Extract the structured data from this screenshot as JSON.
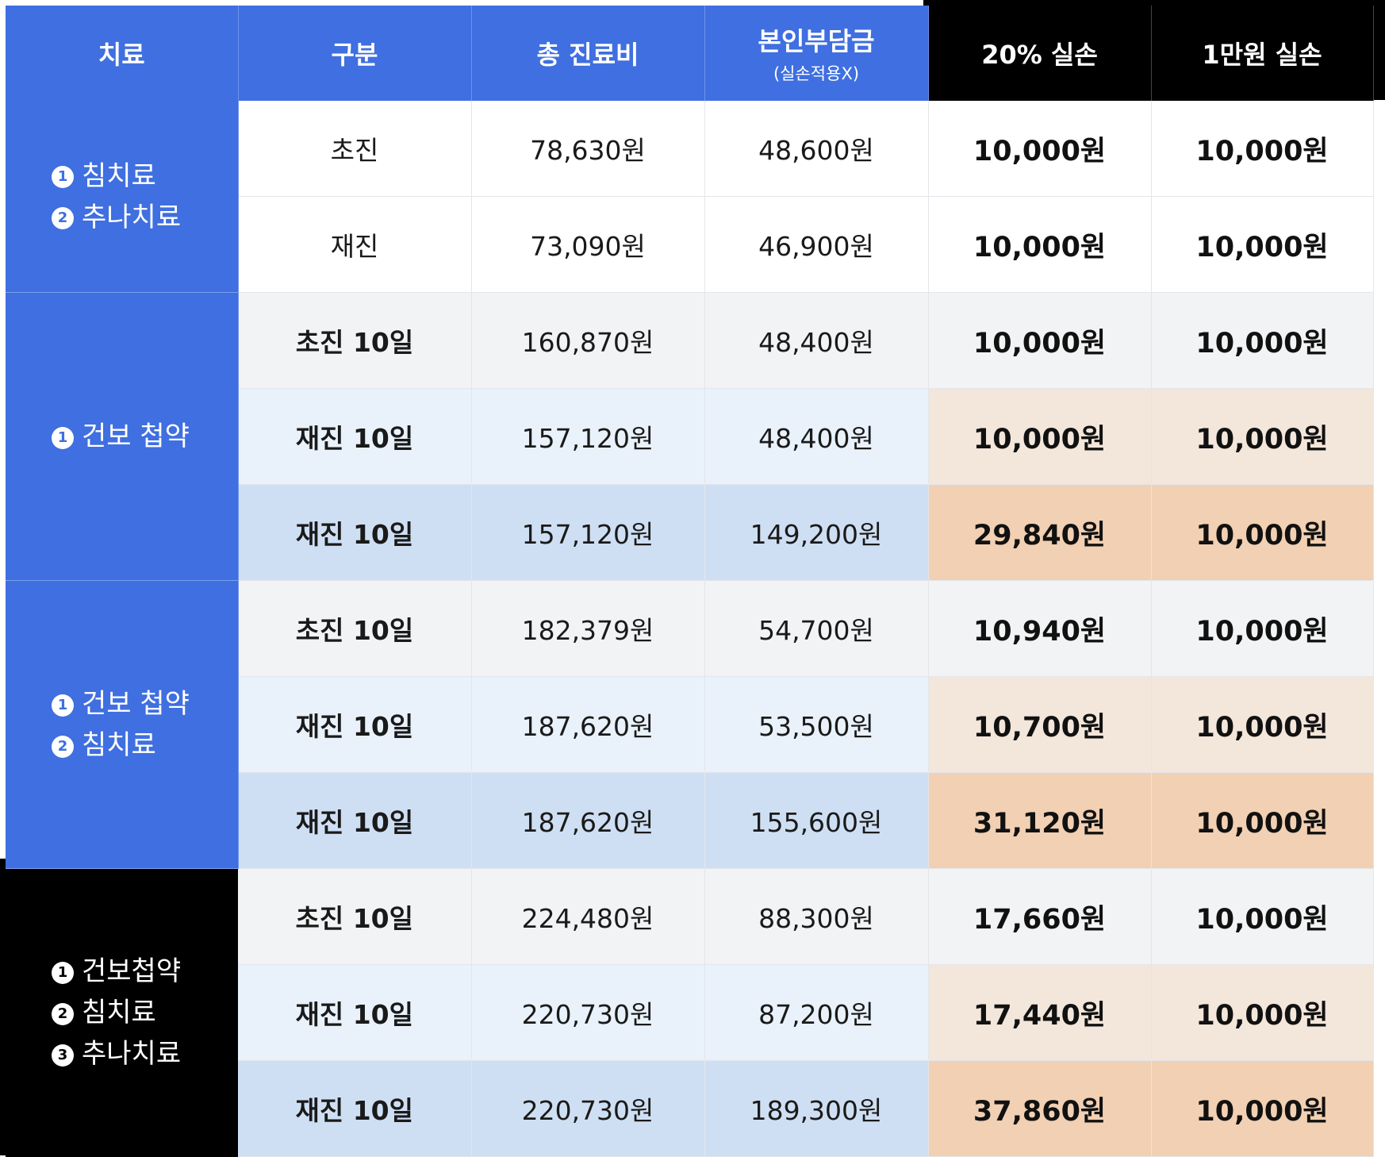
{
  "header": {
    "treatment": "치료",
    "category": "구분",
    "total_fee": "총 진료비",
    "copay": "본인부담금",
    "copay_note": "(실손적용X)",
    "pct20": "20% 실손",
    "flat10k": "1만원 실손"
  },
  "groups": [
    {
      "treatment_lines": [
        {
          "num": "1",
          "text": "침치료"
        },
        {
          "num": "2",
          "text": "추나치료"
        }
      ],
      "rows": [
        {
          "label": "초진",
          "total": "78,630원",
          "copay": "48,600원",
          "pct20": "10,000원",
          "flat10k": "10,000원"
        },
        {
          "label": "재진",
          "total": "73,090원",
          "copay": "46,900원",
          "pct20": "10,000원",
          "flat10k": "10,000원"
        }
      ]
    },
    {
      "treatment_lines": [
        {
          "num": "1",
          "text": "건보 첩약"
        }
      ],
      "rows": [
        {
          "label": "초진 10일",
          "total": "160,870원",
          "copay": "48,400원",
          "pct20": "10,000원",
          "flat10k": "10,000원"
        },
        {
          "label": "재진 10일",
          "total": "157,120원",
          "copay": "48,400원",
          "pct20": "10,000원",
          "flat10k": "10,000원"
        },
        {
          "label": "재진 10일",
          "total": "157,120원",
          "copay": "149,200원",
          "pct20": "29,840원",
          "flat10k": "10,000원"
        }
      ]
    },
    {
      "treatment_lines": [
        {
          "num": "1",
          "text": "건보 첩약"
        },
        {
          "num": "2",
          "text": "침치료"
        }
      ],
      "rows": [
        {
          "label": "초진 10일",
          "total": "182,379원",
          "copay": "54,700원",
          "pct20": "10,940원",
          "flat10k": "10,000원"
        },
        {
          "label": "재진 10일",
          "total": "187,620원",
          "copay": "53,500원",
          "pct20": "10,700원",
          "flat10k": "10,000원"
        },
        {
          "label": "재진 10일",
          "total": "187,620원",
          "copay": "155,600원",
          "pct20": "31,120원",
          "flat10k": "10,000원"
        }
      ]
    },
    {
      "treatment_lines": [
        {
          "num": "1",
          "text": "건보첩약"
        },
        {
          "num": "2",
          "text": "침치료"
        },
        {
          "num": "3",
          "text": "추나치료"
        }
      ],
      "rows": [
        {
          "label": "초진 10일",
          "total": "224,480원",
          "copay": "88,300원",
          "pct20": "17,660원",
          "flat10k": "10,000원"
        },
        {
          "label": "재진 10일",
          "total": "220,730원",
          "copay": "87,200원",
          "pct20": "17,440원",
          "flat10k": "10,000원"
        },
        {
          "label": "재진 10일",
          "total": "220,730원",
          "copay": "189,300원",
          "pct20": "37,860원",
          "flat10k": "10,000원"
        }
      ]
    }
  ]
}
